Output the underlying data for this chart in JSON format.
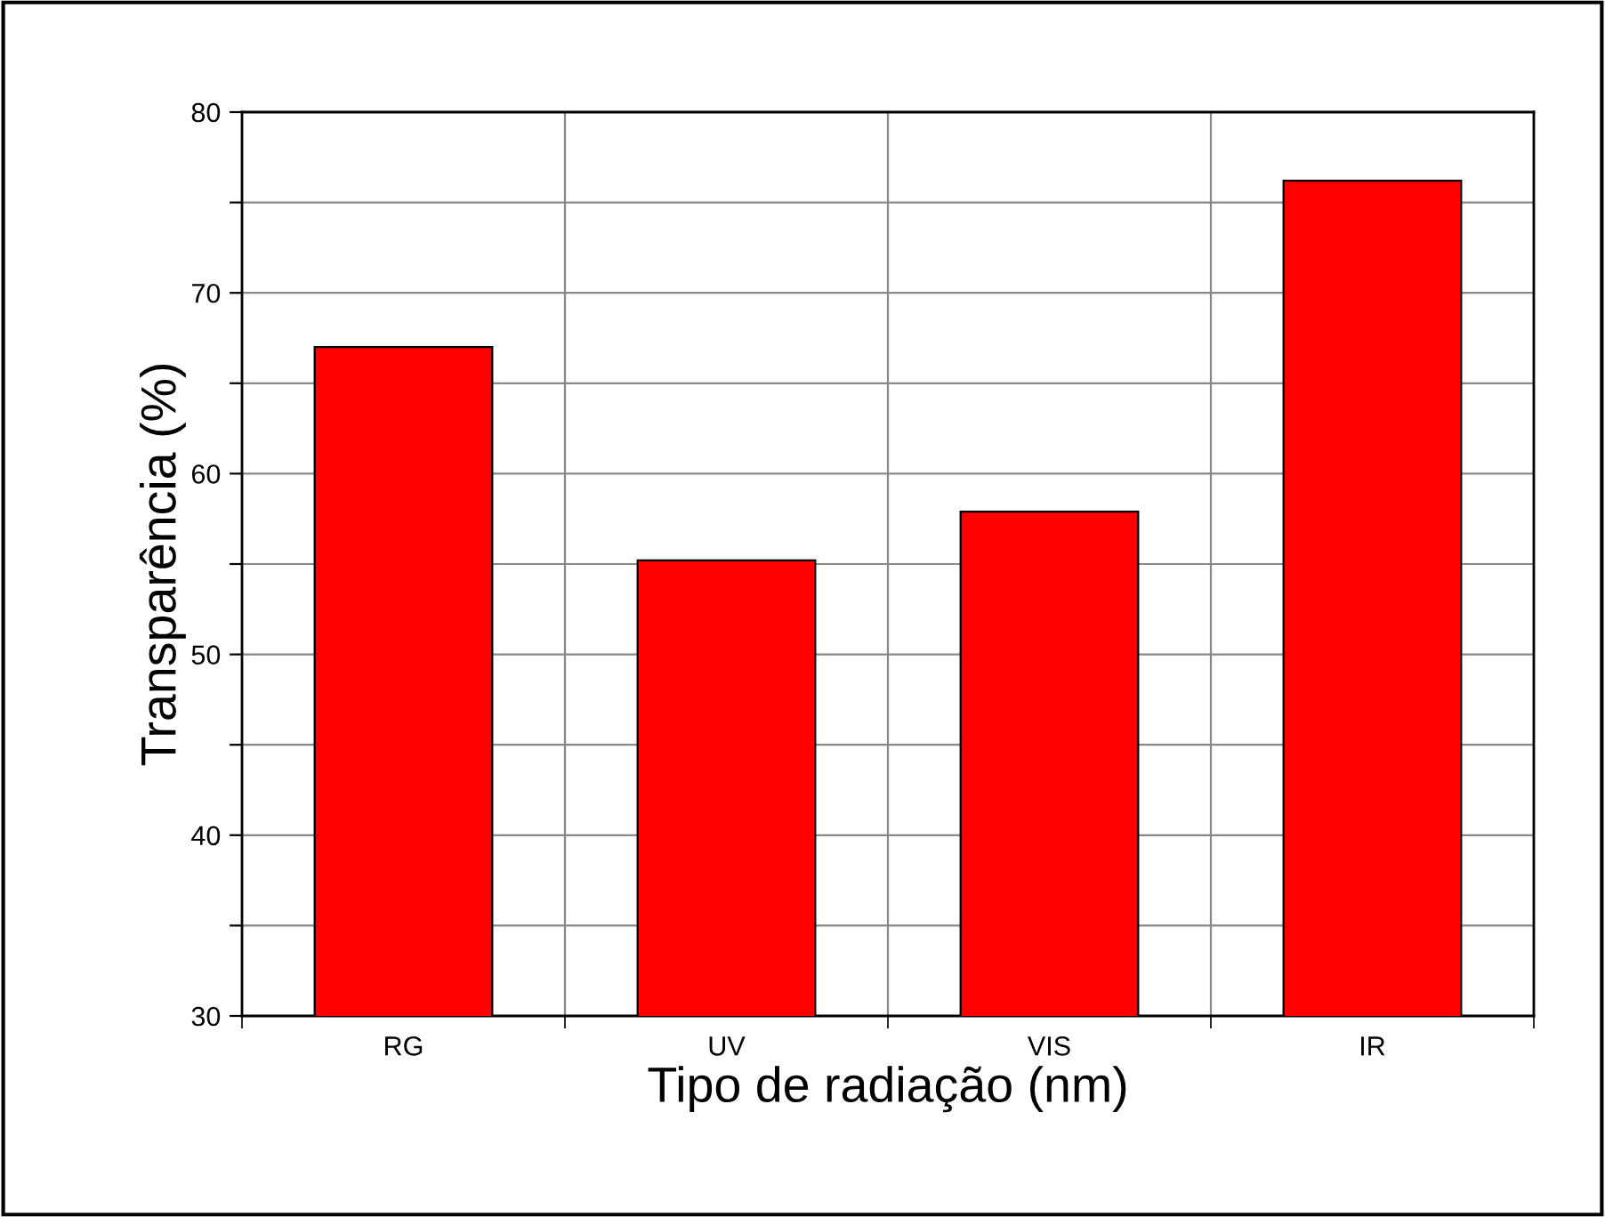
{
  "chart_data": {
    "type": "bar",
    "xlabel": "Tipo de radiação (nm)",
    "ylabel": "Transparência (%)",
    "categories": [
      "RG",
      "UV",
      "VIS",
      "IR"
    ],
    "values": [
      67.0,
      55.2,
      57.9,
      76.2
    ],
    "color": "#ff0000",
    "ylim": [
      30,
      80
    ],
    "yticks": [
      30,
      {
        "value": 35,
        "label": null
      },
      40,
      {
        "value": 45,
        "label": null
      },
      50,
      {
        "value": 55,
        "label": null
      },
      60,
      {
        "value": 65,
        "label": null
      },
      70,
      {
        "value": 75,
        "label": null
      },
      80
    ],
    "grid": true
  }
}
